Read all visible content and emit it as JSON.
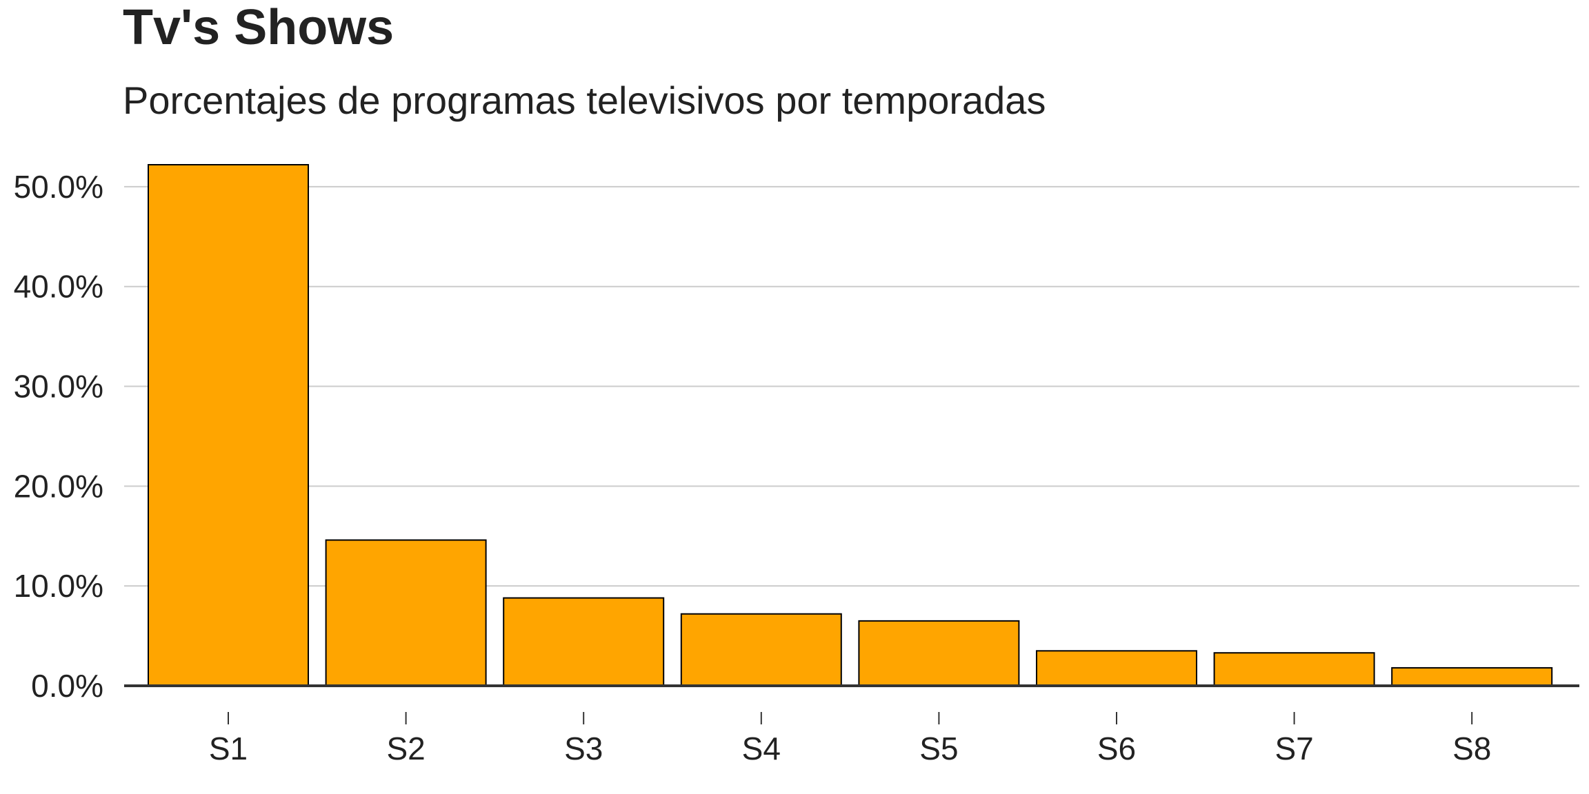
{
  "chart_data": {
    "type": "bar",
    "title": "Tv's Shows",
    "subtitle": "Porcentajes de programas televisivos por temporadas",
    "xlabel": "",
    "ylabel": "",
    "categories": [
      "S1",
      "S2",
      "S3",
      "S4",
      "S5",
      "S6",
      "S7",
      "S8"
    ],
    "values": [
      52.2,
      14.6,
      8.8,
      7.2,
      6.5,
      3.5,
      3.3,
      1.8
    ],
    "ylim": [
      0,
      52.2
    ],
    "yticks": [
      0,
      10,
      20,
      30,
      40,
      50
    ],
    "ytick_labels": [
      "0.0%",
      "10.0%",
      "20.0%",
      "30.0%",
      "40.0%",
      "50.0%"
    ],
    "grid": "horizontal",
    "legend": "none",
    "bar_color": "#FFA500",
    "bar_border_color": "#000000",
    "grid_color": "#CCCCCC",
    "axis_color": "#333333"
  }
}
